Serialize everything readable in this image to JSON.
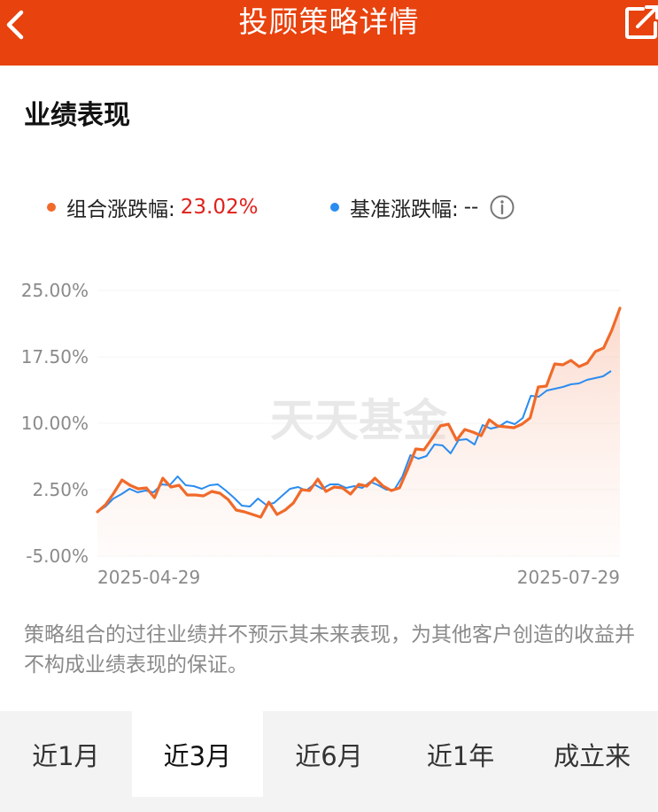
{
  "header": {
    "title": "投顾策略详情",
    "back_icon": "chevron-left-icon",
    "share_icon": "share-external-icon"
  },
  "section": {
    "title": "业绩表现"
  },
  "legend": {
    "portfolio_label": "组合涨跌幅:",
    "portfolio_value": "23.02%",
    "portfolio_color": "#f06a2a",
    "benchmark_label": "基准涨跌幅:",
    "benchmark_value": "--",
    "benchmark_color": "#2a8cf0",
    "info_icon": "info-circle-icon"
  },
  "chart_data": {
    "type": "line",
    "watermark": "天天基金",
    "y_tick_labels": [
      "25.00%",
      "17.50%",
      "10.00%",
      "2.50%",
      "-5.00%"
    ],
    "y_ticks": [
      25,
      17.5,
      10,
      2.5,
      -5
    ],
    "ylim": [
      -5,
      25
    ],
    "x_tick_labels": [
      "2025-04-29",
      "2025-07-29"
    ],
    "series": [
      {
        "name": "组合涨跌幅",
        "color": "#f06a2a",
        "values": [
          0.0,
          0.8,
          2.1,
          3.6,
          3.0,
          2.6,
          2.7,
          1.6,
          3.8,
          2.8,
          3.0,
          1.9,
          1.9,
          1.8,
          2.3,
          2.1,
          1.4,
          0.2,
          0.0,
          -0.3,
          -0.6,
          1.1,
          -0.3,
          0.2,
          1.0,
          2.5,
          2.4,
          3.7,
          2.3,
          2.8,
          2.7,
          2.0,
          3.1,
          2.9,
          3.8,
          2.9,
          2.4,
          2.7,
          4.8,
          7.1,
          7.0,
          8.3,
          9.7,
          9.9,
          8.1,
          9.3,
          9.0,
          8.6,
          10.4,
          9.7,
          9.6,
          9.5,
          9.9,
          10.6,
          14.1,
          14.2,
          16.7,
          16.6,
          17.1,
          16.4,
          16.8,
          18.1,
          18.5,
          20.5,
          23.0
        ]
      },
      {
        "name": "基准涨跌幅",
        "color": "#2a8cf0",
        "values": [
          0.0,
          0.6,
          1.5,
          2.0,
          2.6,
          2.2,
          2.4,
          2.2,
          3.1,
          3.0,
          4.0,
          3.0,
          2.9,
          2.6,
          3.0,
          3.1,
          2.4,
          1.6,
          0.7,
          0.6,
          1.5,
          0.8,
          1.0,
          1.8,
          2.6,
          2.8,
          2.4,
          3.1,
          2.6,
          3.1,
          3.1,
          2.7,
          2.9,
          2.7,
          3.4,
          3.0,
          2.5,
          2.5,
          4.0,
          6.4,
          6.0,
          6.3,
          7.6,
          7.5,
          6.6,
          8.1,
          8.2,
          7.6,
          9.8,
          9.4,
          9.6,
          10.2,
          9.9,
          10.6,
          13.1,
          13.0,
          13.7,
          13.9,
          14.1,
          14.4,
          14.5,
          14.9,
          15.1,
          15.3,
          15.9
        ]
      }
    ],
    "grid": false,
    "area_fill": true
  },
  "disclaimer": {
    "text": "策略组合的过往业绩并不预示其未来表现，为其他客户创造的收益并不构成业绩表现的保证。"
  },
  "tabs": [
    {
      "label": "近1月",
      "active": false
    },
    {
      "label": "近3月",
      "active": true
    },
    {
      "label": "近6月",
      "active": false
    },
    {
      "label": "近1年",
      "active": false
    },
    {
      "label": "成立来",
      "active": false
    }
  ]
}
